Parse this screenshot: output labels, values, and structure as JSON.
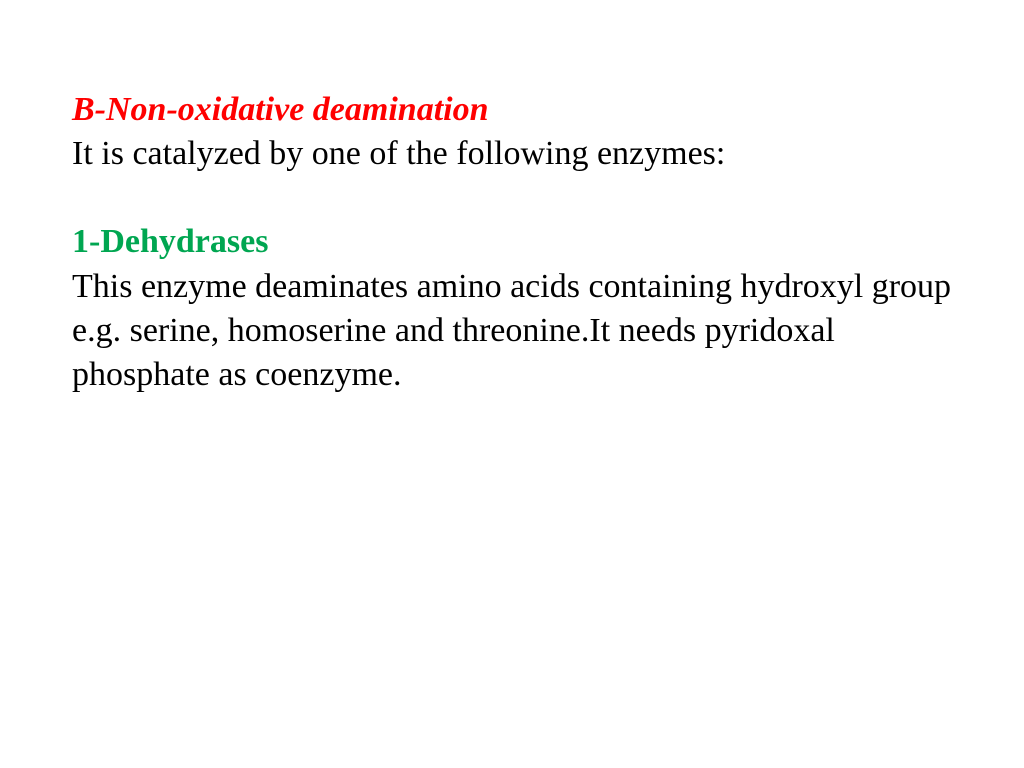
{
  "slide": {
    "heading": "B-Non-oxidative deamination",
    "intro_text": "It is catalyzed by one of the following enzymes:",
    "subheading": "1-Dehydrases",
    "body_text": "This enzyme deaminates amino acids containing hydroxyl group e.g. serine, homoserine and threonine.It needs pyridoxal phosphate as coenzyme.",
    "colors": {
      "heading_color": "#ff0000",
      "subheading_color": "#00a651",
      "text_color": "#000000",
      "background_color": "#ffffff"
    },
    "typography": {
      "font_family": "Times New Roman",
      "font_size": 34,
      "heading_italic": true,
      "heading_bold": true,
      "subheading_bold": true
    }
  }
}
